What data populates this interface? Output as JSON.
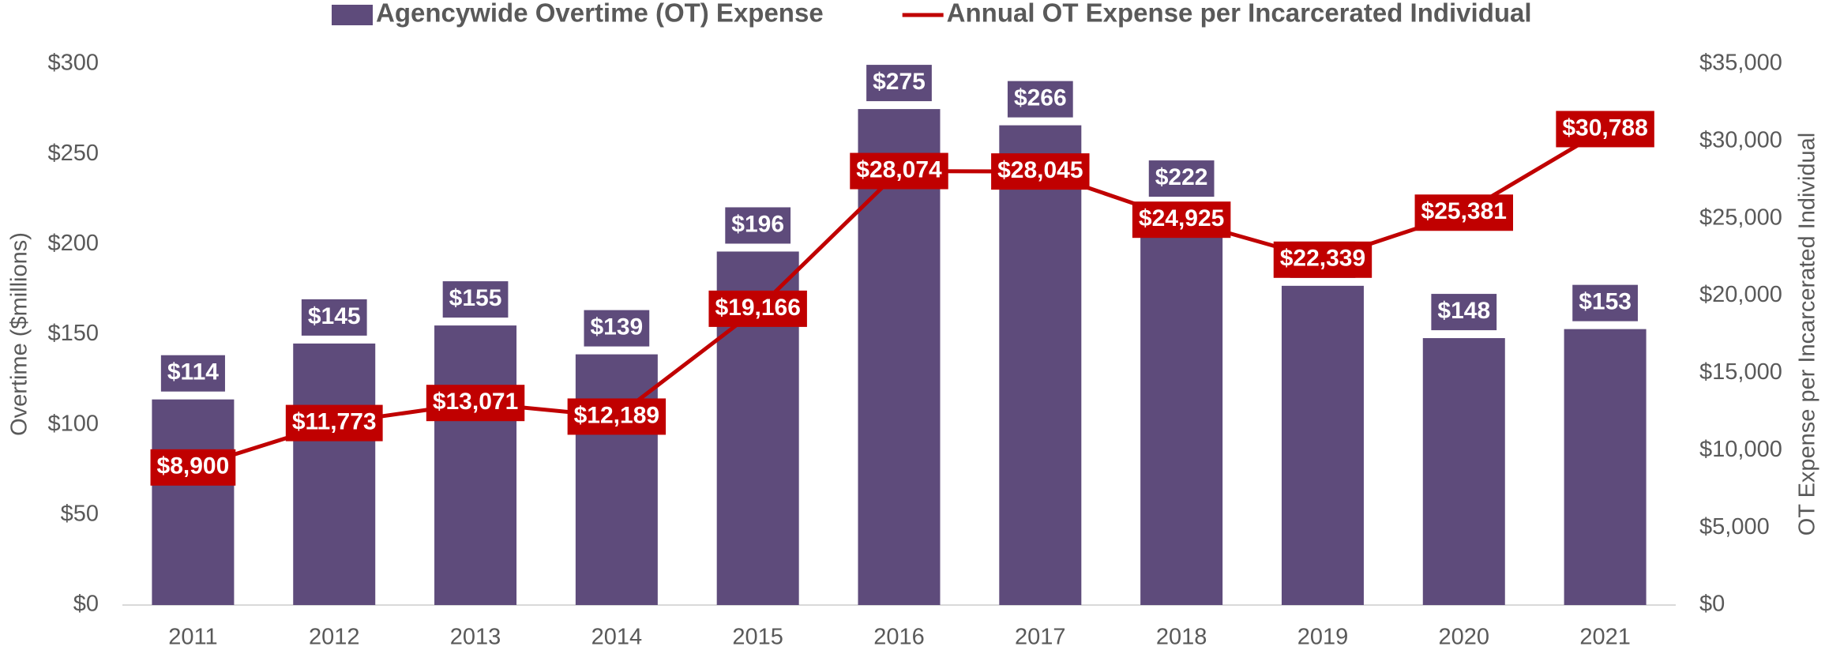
{
  "chart_data": {
    "type": "bar_line",
    "categories": [
      "2011",
      "2012",
      "2013",
      "2014",
      "2015",
      "2016",
      "2017",
      "2018",
      "2019",
      "2020",
      "2021"
    ],
    "series": [
      {
        "name": "Agencywide Overtime (OT) Expense",
        "color": "#5e4b7b",
        "type": "bar",
        "values": [
          114,
          145,
          155,
          139,
          196,
          275,
          266,
          222,
          177,
          148,
          153
        ],
        "value_labels": [
          "$114",
          "$145",
          "$155",
          "$139",
          "$196",
          "$275",
          "$266",
          "$222",
          "$177",
          "$148",
          "$153"
        ]
      },
      {
        "name": "Annual OT Expense per Incarcerated Individual",
        "color": "#c00000",
        "type": "line",
        "axis": "y2",
        "values": [
          8900,
          11773,
          13071,
          12189,
          19166,
          28074,
          28045,
          24925,
          22339,
          25381,
          30788
        ],
        "value_labels": [
          "$8,900",
          "$11,773",
          "$13,071",
          "$12,189",
          "$19,166",
          "$28,074",
          "$28,045",
          "$24,925",
          "$22,339",
          "$25,381",
          "$30,788"
        ]
      }
    ],
    "ylabel": "Overtime ($millions)",
    "y2label": "OT Expense per Incarcerated Individual",
    "ylim": [
      0,
      300
    ],
    "yticks": [
      {
        "value": 0,
        "label": "$0"
      },
      {
        "value": 50,
        "label": "$50"
      },
      {
        "value": 100,
        "label": "$100"
      },
      {
        "value": 150,
        "label": "$150"
      },
      {
        "value": 200,
        "label": "$200"
      },
      {
        "value": 250,
        "label": "$250"
      },
      {
        "value": 300,
        "label": "$300"
      }
    ],
    "y2lim": [
      0,
      35000
    ],
    "y2ticks": [
      {
        "value": 0,
        "label": "$0"
      },
      {
        "value": 5000,
        "label": "$5,000"
      },
      {
        "value": 10000,
        "label": "$10,000"
      },
      {
        "value": 15000,
        "label": "$15,000"
      },
      {
        "value": 20000,
        "label": "$20,000"
      },
      {
        "value": 25000,
        "label": "$25,000"
      },
      {
        "value": 30000,
        "label": "$30,000"
      },
      {
        "value": 35000,
        "label": "$35,000"
      }
    ],
    "legend": "top"
  }
}
